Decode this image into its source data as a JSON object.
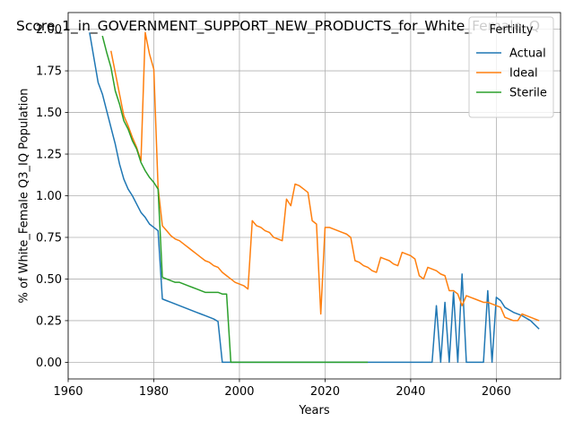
{
  "chart_data": {
    "type": "line",
    "title": "Score_1_in_GOVERNMENT_SUPPORT_NEW_PRODUCTS_for_White_Female_Q",
    "xlabel": "Years",
    "ylabel": "% of White_Female Q3_IQ Population",
    "xlim": [
      1960,
      2075
    ],
    "ylim": [
      -0.1,
      2.1
    ],
    "xticks": [
      1960,
      1980,
      2000,
      2020,
      2040,
      2060
    ],
    "xtick_labels": [
      "1960",
      "1980",
      "2000",
      "2020",
      "2040",
      "2060"
    ],
    "yticks": [
      0.0,
      0.25,
      0.5,
      0.75,
      1.0,
      1.25,
      1.5,
      1.75,
      2.0
    ],
    "ytick_labels": [
      "0.00",
      "0.25",
      "0.50",
      "0.75",
      "1.00",
      "1.25",
      "1.50",
      "1.75",
      "2.00"
    ],
    "grid": true,
    "legend": {
      "title": "Fertility",
      "placement": "top-right"
    },
    "series": [
      {
        "name": "Actual",
        "color": "#1f77b4",
        "points": [
          [
            1965,
            1.98
          ],
          [
            1966,
            1.83
          ],
          [
            1967,
            1.68
          ],
          [
            1968,
            1.61
          ],
          [
            1969,
            1.51
          ],
          [
            1970,
            1.41
          ],
          [
            1971,
            1.31
          ],
          [
            1972,
            1.19
          ],
          [
            1973,
            1.1
          ],
          [
            1974,
            1.04
          ],
          [
            1975,
            1.0
          ],
          [
            1976,
            0.95
          ],
          [
            1977,
            0.9
          ],
          [
            1978,
            0.87
          ],
          [
            1979,
            0.83
          ],
          [
            1980,
            0.81
          ],
          [
            1981,
            0.79
          ],
          [
            1982,
            0.38
          ],
          [
            1983,
            0.37
          ],
          [
            1984,
            0.36
          ],
          [
            1985,
            0.35
          ],
          [
            1986,
            0.34
          ],
          [
            1987,
            0.33
          ],
          [
            1988,
            0.32
          ],
          [
            1989,
            0.31
          ],
          [
            1990,
            0.3
          ],
          [
            1991,
            0.29
          ],
          [
            1992,
            0.28
          ],
          [
            1993,
            0.27
          ],
          [
            1994,
            0.26
          ],
          [
            1995,
            0.245
          ],
          [
            1996,
            0.0
          ],
          [
            1998,
            0.0
          ],
          [
            2000,
            0.0
          ],
          [
            2010,
            0.0
          ],
          [
            2020,
            0.0
          ],
          [
            2030,
            0.0
          ],
          [
            2040,
            0.0
          ],
          [
            2045,
            0.0
          ],
          [
            2046,
            0.34
          ],
          [
            2047,
            0.0
          ],
          [
            2048,
            0.36
          ],
          [
            2049,
            0.0
          ],
          [
            2050,
            0.42
          ],
          [
            2051,
            0.0
          ],
          [
            2052,
            0.53
          ],
          [
            2053,
            0.0
          ],
          [
            2055,
            0.0
          ],
          [
            2057,
            0.0
          ],
          [
            2058,
            0.43
          ],
          [
            2059,
            0.0
          ],
          [
            2060,
            0.39
          ],
          [
            2061,
            0.37
          ],
          [
            2062,
            0.33
          ],
          [
            2064,
            0.3
          ],
          [
            2066,
            0.28
          ],
          [
            2068,
            0.25
          ],
          [
            2070,
            0.2
          ]
        ]
      },
      {
        "name": "Ideal",
        "color": "#ff7f0e",
        "points": [
          [
            1970,
            1.87
          ],
          [
            1971,
            1.74
          ],
          [
            1972,
            1.61
          ],
          [
            1973,
            1.48
          ],
          [
            1974,
            1.42
          ],
          [
            1975,
            1.35
          ],
          [
            1976,
            1.29
          ],
          [
            1977,
            1.21
          ],
          [
            1978,
            1.98
          ],
          [
            1979,
            1.85
          ],
          [
            1980,
            1.76
          ],
          [
            1981,
            1.05
          ],
          [
            1982,
            0.82
          ],
          [
            1983,
            0.79
          ],
          [
            1984,
            0.76
          ],
          [
            1985,
            0.74
          ],
          [
            1986,
            0.73
          ],
          [
            1987,
            0.71
          ],
          [
            1988,
            0.69
          ],
          [
            1989,
            0.67
          ],
          [
            1990,
            0.65
          ],
          [
            1991,
            0.63
          ],
          [
            1992,
            0.61
          ],
          [
            1993,
            0.6
          ],
          [
            1994,
            0.58
          ],
          [
            1995,
            0.57
          ],
          [
            1996,
            0.54
          ],
          [
            1997,
            0.52
          ],
          [
            1998,
            0.5
          ],
          [
            1999,
            0.48
          ],
          [
            2000,
            0.47
          ],
          [
            2001,
            0.46
          ],
          [
            2002,
            0.44
          ],
          [
            2003,
            0.85
          ],
          [
            2004,
            0.82
          ],
          [
            2005,
            0.81
          ],
          [
            2006,
            0.79
          ],
          [
            2007,
            0.78
          ],
          [
            2008,
            0.75
          ],
          [
            2009,
            0.74
          ],
          [
            2010,
            0.73
          ],
          [
            2011,
            0.98
          ],
          [
            2012,
            0.94
          ],
          [
            2013,
            1.07
          ],
          [
            2014,
            1.06
          ],
          [
            2015,
            1.04
          ],
          [
            2016,
            1.02
          ],
          [
            2017,
            0.85
          ],
          [
            2018,
            0.83
          ],
          [
            2019,
            0.29
          ],
          [
            2020,
            0.81
          ],
          [
            2021,
            0.81
          ],
          [
            2022,
            0.8
          ],
          [
            2023,
            0.79
          ],
          [
            2024,
            0.78
          ],
          [
            2025,
            0.77
          ],
          [
            2026,
            0.75
          ],
          [
            2027,
            0.61
          ],
          [
            2028,
            0.6
          ],
          [
            2029,
            0.58
          ],
          [
            2030,
            0.57
          ],
          [
            2031,
            0.55
          ],
          [
            2032,
            0.54
          ],
          [
            2033,
            0.63
          ],
          [
            2034,
            0.62
          ],
          [
            2035,
            0.61
          ],
          [
            2036,
            0.59
          ],
          [
            2037,
            0.58
          ],
          [
            2038,
            0.66
          ],
          [
            2039,
            0.65
          ],
          [
            2040,
            0.64
          ],
          [
            2041,
            0.62
          ],
          [
            2042,
            0.52
          ],
          [
            2043,
            0.5
          ],
          [
            2044,
            0.57
          ],
          [
            2045,
            0.56
          ],
          [
            2046,
            0.55
          ],
          [
            2047,
            0.53
          ],
          [
            2048,
            0.52
          ],
          [
            2049,
            0.43
          ],
          [
            2050,
            0.43
          ],
          [
            2051,
            0.41
          ],
          [
            2052,
            0.34
          ],
          [
            2053,
            0.4
          ],
          [
            2054,
            0.39
          ],
          [
            2055,
            0.38
          ],
          [
            2056,
            0.37
          ],
          [
            2057,
            0.36
          ],
          [
            2058,
            0.36
          ],
          [
            2059,
            0.35
          ],
          [
            2060,
            0.34
          ],
          [
            2061,
            0.33
          ],
          [
            2062,
            0.27
          ],
          [
            2063,
            0.26
          ],
          [
            2064,
            0.25
          ],
          [
            2065,
            0.25
          ],
          [
            2066,
            0.29
          ],
          [
            2067,
            0.28
          ],
          [
            2068,
            0.27
          ],
          [
            2069,
            0.26
          ],
          [
            2070,
            0.25
          ]
        ]
      },
      {
        "name": "Sterile",
        "color": "#2ca02c",
        "points": [
          [
            1968,
            1.96
          ],
          [
            1969,
            1.86
          ],
          [
            1970,
            1.77
          ],
          [
            1971,
            1.63
          ],
          [
            1972,
            1.55
          ],
          [
            1973,
            1.45
          ],
          [
            1974,
            1.4
          ],
          [
            1975,
            1.33
          ],
          [
            1976,
            1.28
          ],
          [
            1977,
            1.2
          ],
          [
            1978,
            1.15
          ],
          [
            1979,
            1.11
          ],
          [
            1980,
            1.08
          ],
          [
            1981,
            1.04
          ],
          [
            1982,
            0.51
          ],
          [
            1983,
            0.5
          ],
          [
            1984,
            0.49
          ],
          [
            1985,
            0.48
          ],
          [
            1986,
            0.48
          ],
          [
            1987,
            0.47
          ],
          [
            1988,
            0.46
          ],
          [
            1989,
            0.45
          ],
          [
            1990,
            0.44
          ],
          [
            1991,
            0.43
          ],
          [
            1992,
            0.42
          ],
          [
            1993,
            0.42
          ],
          [
            1994,
            0.42
          ],
          [
            1995,
            0.42
          ],
          [
            1996,
            0.41
          ],
          [
            1997,
            0.41
          ],
          [
            1998,
            0.0
          ],
          [
            2000,
            0.0
          ],
          [
            2010,
            0.0
          ],
          [
            2020,
            0.0
          ],
          [
            2030,
            0.0
          ]
        ]
      }
    ]
  }
}
